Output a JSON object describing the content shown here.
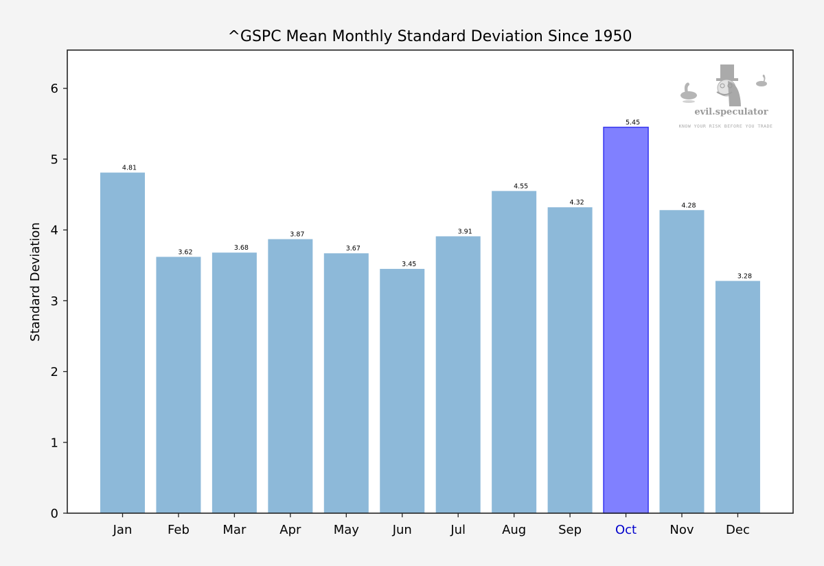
{
  "chart_data": {
    "type": "bar",
    "title": "^GSPC Mean Monthly Standard Deviation Since 1950",
    "xlabel": "",
    "ylabel": "Standard Deviation",
    "categories": [
      "Jan",
      "Feb",
      "Mar",
      "Apr",
      "May",
      "Jun",
      "Jul",
      "Aug",
      "Sep",
      "Oct",
      "Nov",
      "Dec"
    ],
    "values": [
      4.81,
      3.62,
      3.68,
      3.87,
      3.67,
      3.45,
      3.91,
      4.55,
      4.32,
      5.45,
      4.28,
      3.28
    ],
    "data_labels": [
      "4.81",
      "3.62",
      "3.68",
      "3.87",
      "3.67",
      "3.45",
      "3.91",
      "4.55",
      "4.32",
      "5.45",
      "4.28",
      "3.28"
    ],
    "highlight": {
      "category": "Oct",
      "index": 9
    },
    "ylim": [
      0,
      6.54
    ],
    "yticks": [
      0,
      1,
      2,
      3,
      4,
      5,
      6
    ],
    "grid": false,
    "legend": null,
    "colors": {
      "bar": "#8db9d9",
      "highlight_fill": "#8080ff",
      "highlight_edge": "#3333ee",
      "highlight_tick_label": "#0000cc",
      "axes_background": "#ffffff",
      "figure_background": "#f4f4f4"
    }
  },
  "watermark": {
    "brand": "evil.speculator",
    "tagline": "KNOW YOUR RISK BEFORE YOU TRADE"
  }
}
